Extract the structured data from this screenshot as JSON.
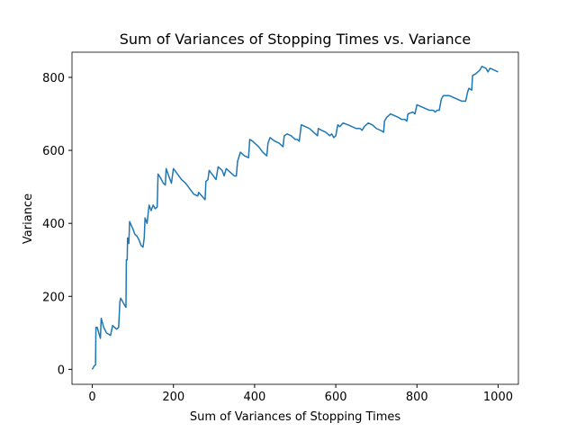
{
  "chart_data": {
    "type": "line",
    "title": "Sum of Variances of Stopping Times vs. Variance",
    "x_label": "Sum of Variances of Stopping Times",
    "y_label": "Variance",
    "x": [
      0,
      5,
      8,
      9,
      12,
      20,
      22,
      28,
      35,
      45,
      50,
      60,
      65,
      68,
      70,
      80,
      83,
      84,
      86,
      87,
      90,
      92,
      100,
      105,
      110,
      115,
      120,
      125,
      128,
      130,
      135,
      140,
      145,
      150,
      155,
      160,
      162,
      168,
      175,
      180,
      182,
      190,
      195,
      200,
      210,
      220,
      230,
      240,
      250,
      260,
      262,
      270,
      278,
      280,
      285,
      288,
      295,
      305,
      310,
      320,
      325,
      330,
      340,
      350,
      355,
      358,
      365,
      375,
      385,
      388,
      395,
      410,
      420,
      430,
      433,
      438,
      450,
      460,
      470,
      473,
      480,
      490,
      500,
      505,
      510,
      515,
      525,
      535,
      545,
      555,
      557,
      565,
      575,
      585,
      590,
      595,
      600,
      605,
      610,
      618,
      630,
      640,
      650,
      660,
      665,
      670,
      680,
      690,
      700,
      710,
      718,
      720,
      725,
      735,
      745,
      755,
      762,
      770,
      775,
      778,
      790,
      795,
      800,
      810,
      820,
      830,
      840,
      845,
      850,
      855,
      860,
      865,
      880,
      890,
      900,
      910,
      920,
      925,
      928,
      935,
      937,
      945,
      950,
      955,
      960,
      970,
      975,
      980,
      990,
      1000
    ],
    "series": [
      {
        "name": "Variance",
        "color": "#1f77b4",
        "values": [
          0,
          10,
          12,
          115,
          115,
          85,
          140,
          115,
          100,
          93,
          120,
          110,
          115,
          185,
          195,
          175,
          170,
          300,
          300,
          360,
          345,
          405,
          385,
          370,
          365,
          355,
          340,
          335,
          360,
          415,
          400,
          450,
          435,
          450,
          440,
          445,
          535,
          525,
          510,
          505,
          550,
          525,
          510,
          550,
          535,
          520,
          510,
          495,
          480,
          475,
          485,
          475,
          465,
          515,
          520,
          545,
          535,
          520,
          555,
          545,
          530,
          550,
          540,
          530,
          530,
          570,
          595,
          585,
          580,
          630,
          625,
          610,
          595,
          585,
          620,
          635,
          625,
          620,
          610,
          640,
          645,
          640,
          630,
          630,
          625,
          670,
          665,
          660,
          650,
          640,
          660,
          655,
          650,
          640,
          645,
          635,
          640,
          670,
          665,
          675,
          670,
          665,
          660,
          660,
          655,
          665,
          675,
          670,
          660,
          655,
          650,
          680,
          690,
          700,
          695,
          690,
          685,
          685,
          680,
          700,
          705,
          700,
          725,
          720,
          715,
          710,
          710,
          705,
          710,
          710,
          740,
          750,
          750,
          745,
          740,
          735,
          735,
          760,
          770,
          765,
          805,
          810,
          815,
          820,
          830,
          825,
          815,
          825,
          820,
          815
        ]
      }
    ],
    "xlim": [
      -50,
      1050
    ],
    "ylim": [
      -41,
      869
    ],
    "xticks": [
      0,
      200,
      400,
      600,
      800,
      1000
    ],
    "yticks": [
      0,
      200,
      400,
      600,
      800
    ]
  }
}
